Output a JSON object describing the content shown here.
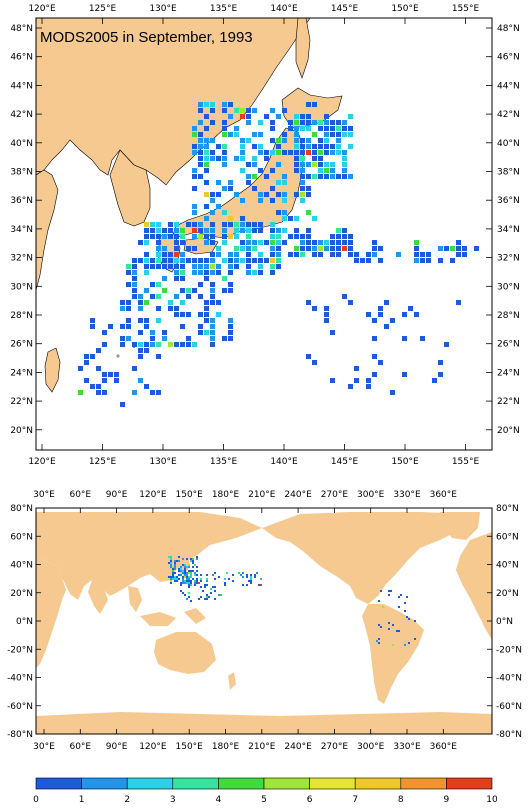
{
  "top_map": {
    "title": "MODS2005 in September, 1993",
    "lon_ticks": [
      "120°E",
      "125°E",
      "130°E",
      "135°E",
      "140°E",
      "145°E",
      "150°E",
      "155°E"
    ],
    "lat_ticks": [
      "48°N",
      "46°N",
      "44°N",
      "42°N",
      "40°N",
      "38°N",
      "36°N",
      "34°N",
      "32°N",
      "30°N",
      "28°N",
      "26°N",
      "24°N",
      "22°N",
      "20°N"
    ]
  },
  "bottom_map": {
    "lon_ticks": [
      "30°E",
      "60°E",
      "90°E",
      "120°E",
      "150°E",
      "180°E",
      "210°E",
      "240°E",
      "270°E",
      "300°E",
      "330°E",
      "360°E"
    ],
    "lat_ticks": [
      "80°N",
      "60°N",
      "40°N",
      "20°N",
      "0°N",
      "-20°N",
      "-40°N",
      "-60°N",
      "-80°N"
    ]
  },
  "colorbar": {
    "labels": [
      "0",
      "1",
      "2",
      "3",
      "4",
      "5",
      "6",
      "7",
      "8",
      "9",
      "10"
    ],
    "colors": [
      "#1e5adc",
      "#1e96f0",
      "#28d2e6",
      "#32e6a0",
      "#3cdc3c",
      "#a0e632",
      "#e6e632",
      "#f0c828",
      "#f09628",
      "#e63c1e"
    ]
  },
  "colors": {
    "land": "#f5c990",
    "ocean": "#ffffff",
    "border": "#000000"
  }
}
